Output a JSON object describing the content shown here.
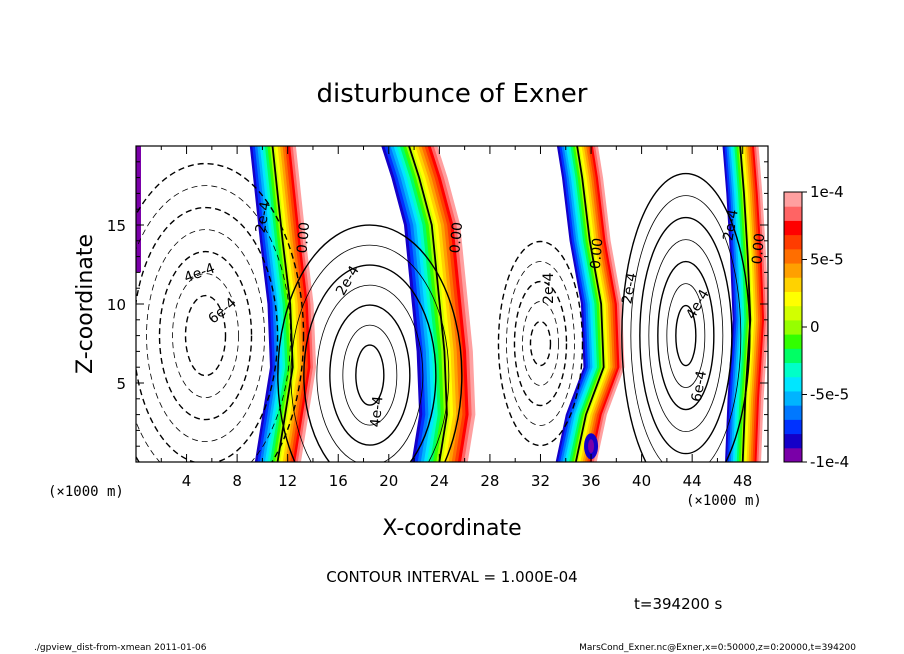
{
  "chart_data": {
    "type": "heatmap",
    "title": "disturbunce of Exner",
    "xlabel": "X-coordinate",
    "ylabel": "Z-coordinate",
    "x_unit": "(×1000 m)",
    "z_unit": "(×1000 m)",
    "x_ticks": [
      "4",
      "8",
      "12",
      "16",
      "20",
      "24",
      "28",
      "32",
      "36",
      "40",
      "44",
      "48"
    ],
    "x_tick_values": [
      4,
      8,
      12,
      16,
      20,
      24,
      28,
      32,
      36,
      40,
      44,
      48
    ],
    "y_ticks": [
      "5",
      "10",
      "15"
    ],
    "y_tick_values": [
      5,
      10,
      15
    ],
    "xlim": [
      0,
      50
    ],
    "ylim": [
      0,
      20
    ],
    "colorbar": {
      "ticks": [
        "1e-4",
        "5e-5",
        "0",
        "-5e-5",
        "-1e-4"
      ],
      "tick_values": [
        0.0001,
        5e-05,
        0,
        -5e-05,
        -0.0001
      ],
      "range": [
        -0.0001,
        0.0001
      ],
      "colors": [
        "#7a00a8",
        "#1400c8",
        "#0032ff",
        "#0078ff",
        "#00b4ff",
        "#00e6ff",
        "#00ffc8",
        "#00ff64",
        "#32ff00",
        "#96ff00",
        "#d2ff00",
        "#ffff00",
        "#ffd200",
        "#ffa000",
        "#ff6e00",
        "#ff3c00",
        "#ff0000",
        "#ff6464",
        "#ffa0a0"
      ]
    },
    "contour_labels": [
      "2e-4",
      "4e-4",
      "6e-4",
      "0.00",
      "2e-4",
      "4e-4",
      "0.00",
      "2e-4",
      "0.00",
      "2e-4",
      "4e-4",
      "6e-4",
      "2e-4",
      "0.00"
    ],
    "contour_interval_text": "CONTOUR INTERVAL = 1.000E-04",
    "time_text": "t=394200 s",
    "grid": false
  },
  "footer": {
    "left": "./gpview_dist-from-xmean  2011-01-06",
    "right": "MarsCond_Exner.nc@Exner,x=0:50000,z=0:20000,t=394200"
  }
}
